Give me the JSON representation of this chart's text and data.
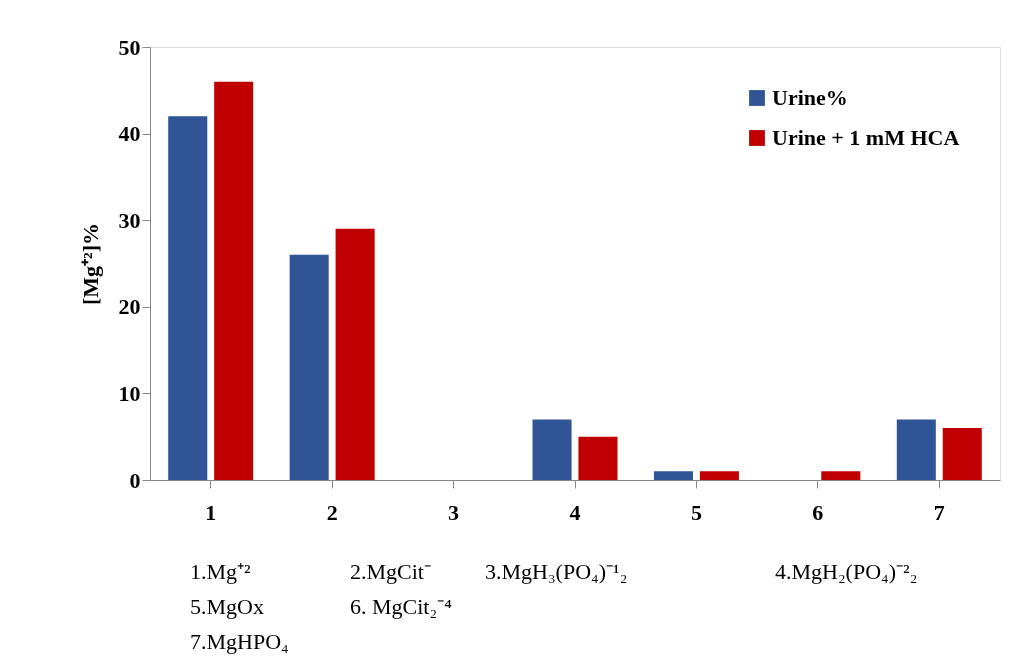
{
  "chart_data": {
    "type": "bar",
    "ylabel": "[Mg⁺²]%",
    "categories": [
      "1",
      "2",
      "3",
      "4",
      "5",
      "6",
      "7"
    ],
    "series": [
      {
        "name": "Urine%",
        "color": "#2f5597",
        "values": [
          42,
          26,
          0,
          7,
          1,
          0,
          7
        ]
      },
      {
        "name": "Urine + 1 mM HCA",
        "color": "#c00000",
        "values": [
          46,
          29,
          0,
          5,
          1,
          1,
          6
        ]
      }
    ],
    "ylim": [
      0,
      50
    ],
    "yticks": [
      0,
      10,
      20,
      30,
      40,
      50
    ],
    "grid": false,
    "legend": "top right",
    "annotations": [
      "1.Mg⁺²",
      "2.MgCit⁻",
      "3.MgH₃(PO₄)⁻¹₂",
      "4.MgH₂(PO₄)⁻²₂",
      "5.MgOx",
      "6. MgCit₂⁻⁴",
      "7.MgHPO₄"
    ]
  }
}
